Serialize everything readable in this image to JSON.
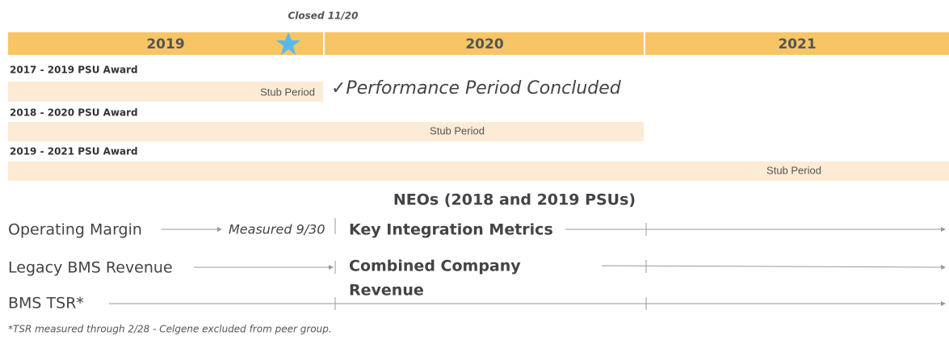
{
  "header": {
    "closed": "Closed 11/20",
    "years": [
      "2019",
      "2020",
      "2021"
    ]
  },
  "awards": [
    {
      "name": "2017 - 2019 PSU Award",
      "bar": "Stub Period"
    },
    {
      "name": "2018 - 2020 PSU Award",
      "bar": "Stub Period"
    },
    {
      "name": "2019 - 2021 PSU Award",
      "bar": "Stub Period"
    }
  ],
  "concluded": "✓Performance Period Concluded",
  "neos": "NEOs (2018 and 2019 PSUs)",
  "metrics": {
    "operating_margin": "Operating Margin",
    "measured": "Measured 9/30",
    "key_integration": "Key Integration Metrics",
    "legacy_revenue": "Legacy BMS Revenue",
    "combined_1": "Combined Company",
    "combined_2": "Revenue",
    "tsr": "BMS TSR*"
  },
  "footnote": "*TSR measured through 2/28 - Celgene excluded from peer group."
}
